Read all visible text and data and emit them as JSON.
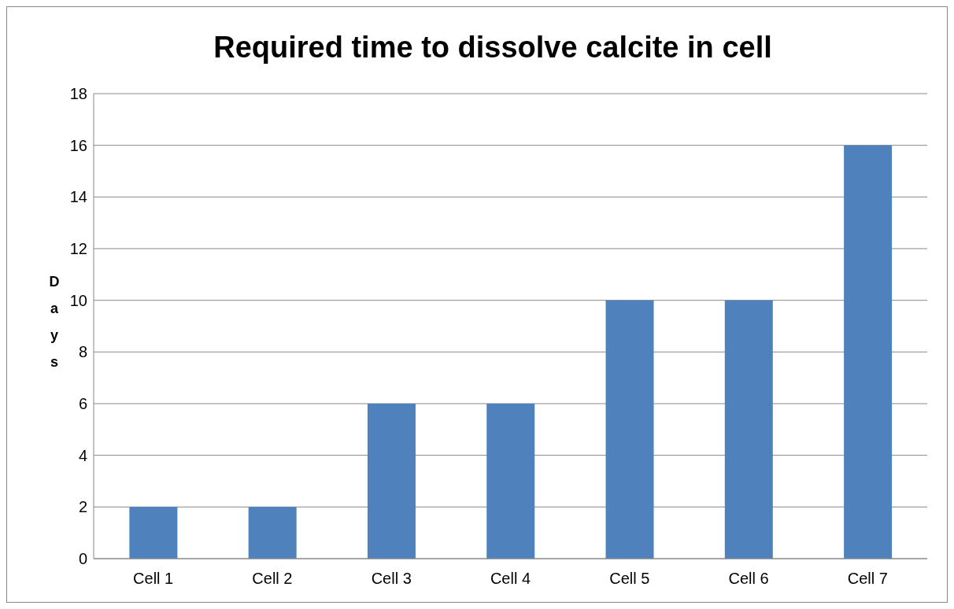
{
  "chart_data": {
    "type": "bar",
    "title": "Required time to dissolve calcite in cell",
    "ylabel": "Days",
    "categories": [
      "Cell 1",
      "Cell  2",
      "Cell 3",
      "Cell 4",
      "Cell 5",
      "Cell 6",
      "Cell 7"
    ],
    "values": [
      2,
      2,
      6,
      6,
      10,
      10,
      16
    ],
    "color": "#4f81bd",
    "ylim": [
      0,
      18
    ],
    "yticks": [
      0,
      2,
      4,
      6,
      8,
      10,
      12,
      14,
      16,
      18
    ],
    "grid": "y",
    "legend": false
  }
}
